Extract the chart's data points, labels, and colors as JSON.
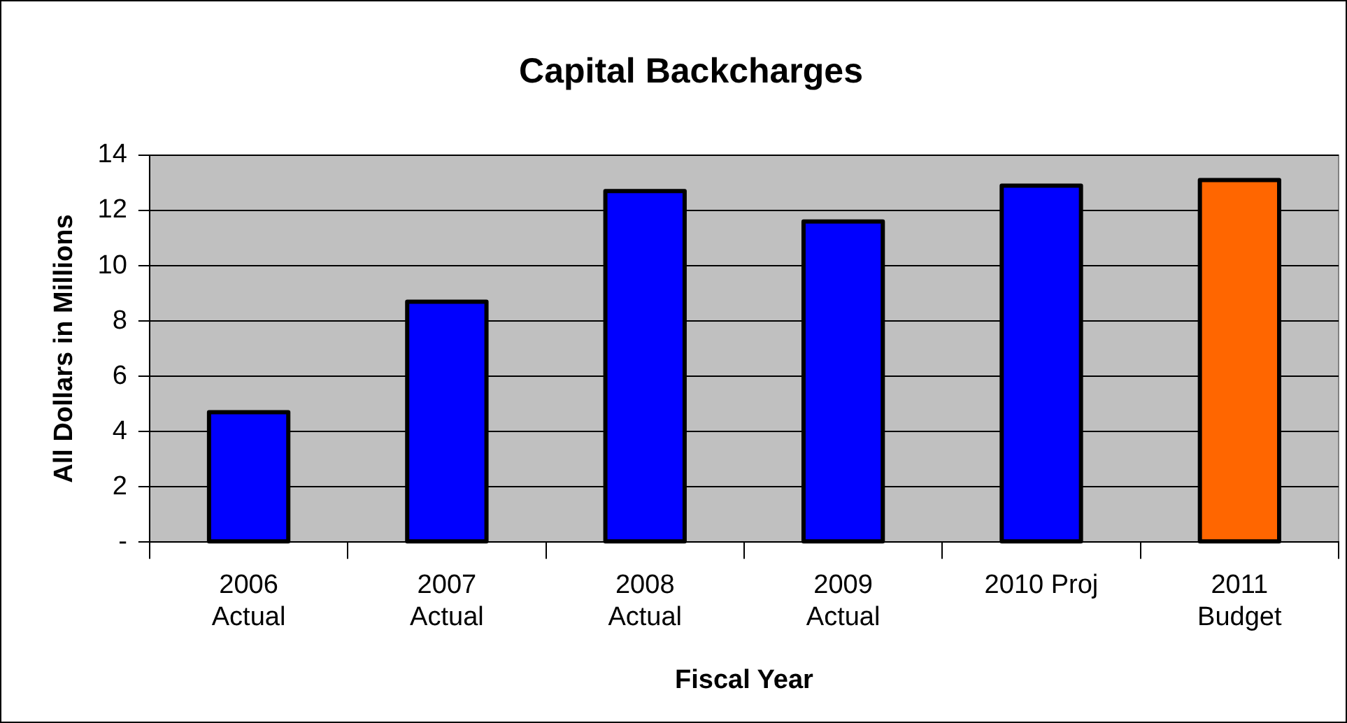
{
  "chart_data": {
    "type": "bar",
    "title": "Capital Backcharges",
    "xlabel": "Fiscal Year",
    "ylabel": "All Dollars in Millions",
    "categories": [
      "2006\nActual",
      "2007\nActual",
      "2008\nActual",
      "2009\nActual",
      "2010 Proj",
      "2011\nBudget"
    ],
    "values": [
      4.7,
      8.7,
      12.7,
      11.6,
      12.9,
      13.1
    ],
    "colors": [
      "#0000ff",
      "#0000ff",
      "#0000ff",
      "#0000ff",
      "#0000ff",
      "#ff6600"
    ],
    "ylim": [
      0,
      14
    ],
    "yticks": [
      {
        "value": 0,
        "label": "-"
      },
      2,
      4,
      6,
      8,
      10,
      12,
      14
    ],
    "grid": "y",
    "legend": false
  }
}
